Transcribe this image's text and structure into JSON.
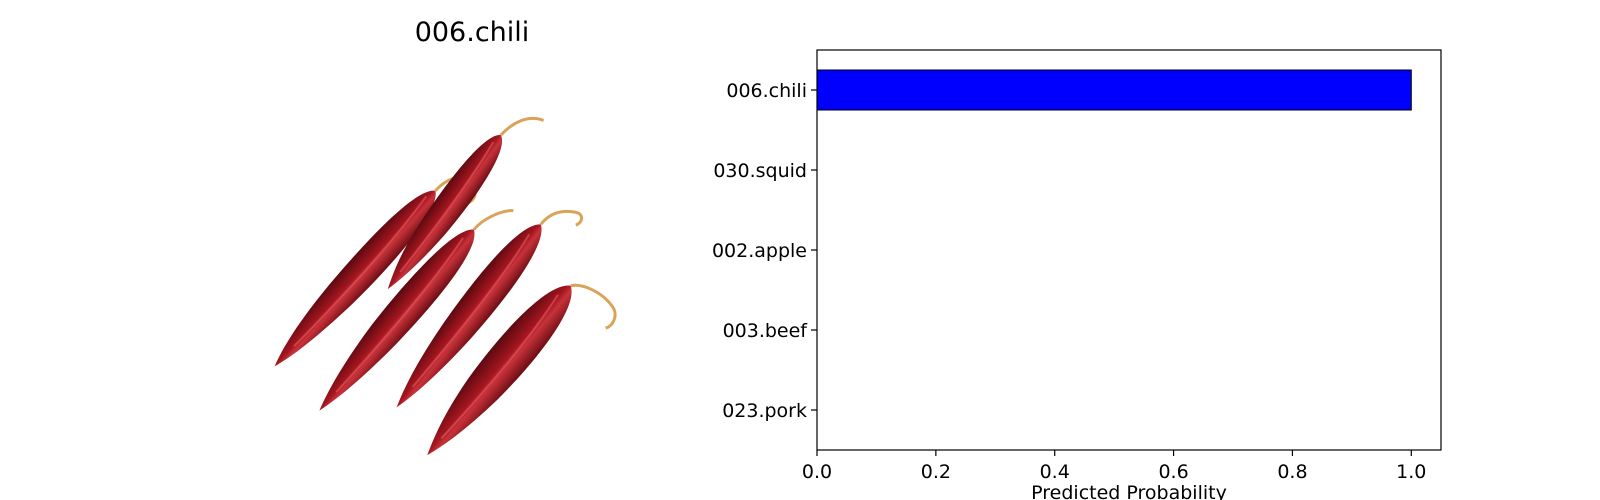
{
  "image_panel": {
    "title": "006.chili",
    "subject": "five dried red chili peppers on white background"
  },
  "colors": {
    "bar": "#0000ff",
    "pepper_dark": "#6e0b12",
    "pepper_mid": "#9c141c",
    "pepper_light": "#c4242c",
    "stem": "#d9a45a",
    "background": "#ffffff"
  },
  "chart_data": {
    "type": "bar",
    "orientation": "horizontal",
    "title": "",
    "xlabel": "Predicted Probability",
    "ylabel": "",
    "xlim": [
      0.0,
      1.05
    ],
    "xticks": [
      "0.0",
      "0.2",
      "0.4",
      "0.6",
      "0.8",
      "1.0"
    ],
    "categories": [
      "006.chili",
      "030.squid",
      "002.apple",
      "003.beef",
      "023.pork"
    ],
    "values": [
      1.0,
      0.0,
      0.0,
      0.0,
      0.0
    ],
    "grid": false,
    "legend": "none"
  }
}
